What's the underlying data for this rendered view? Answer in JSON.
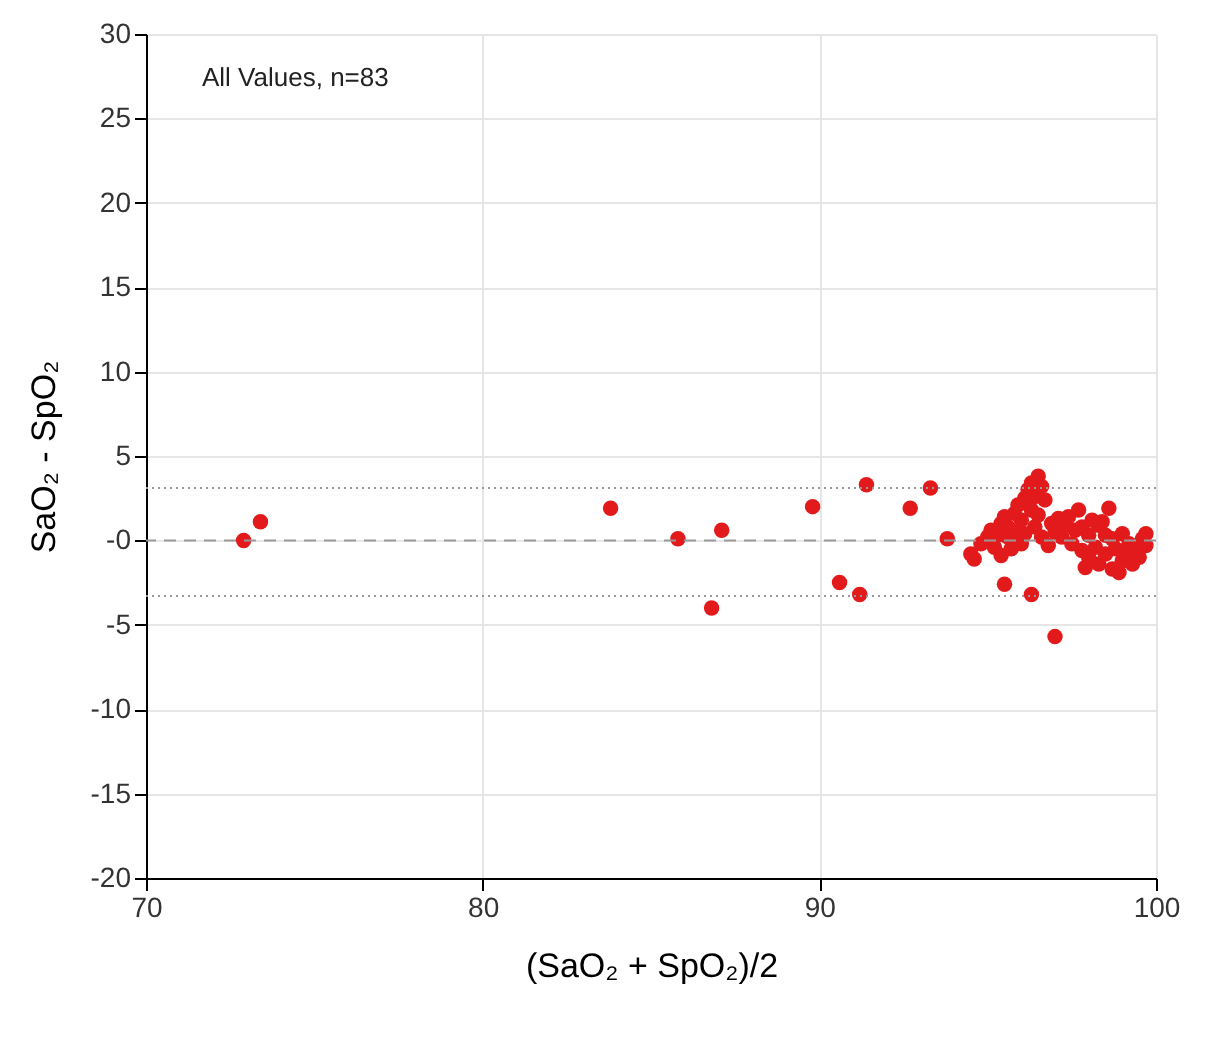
{
  "chart_data": {
    "type": "scatter",
    "xlabel": "(SaO₂ + SpO₂)/2",
    "ylabel": "SaO₂ - SpO₂",
    "annotations": [
      "All Values, n=83"
    ],
    "xlim": [
      70,
      100
    ],
    "xticks": [
      70,
      80,
      90,
      100
    ],
    "ylim": [
      -20,
      30
    ],
    "yticks": [
      -20,
      -15,
      -10,
      -5,
      {
        "value": 0,
        "label": "-0"
      },
      5,
      10,
      15,
      20,
      25,
      30
    ],
    "grid": true,
    "marker": "circle",
    "ref_lines": [
      {
        "axis": "y",
        "value": 3.1,
        "line_style": "dotted",
        "color": "#999999"
      },
      {
        "axis": "y",
        "value": 0,
        "line_style": "dashed",
        "color": "#999999"
      },
      {
        "axis": "y",
        "value": -3.3,
        "line_style": "dotted",
        "color": "#999999"
      }
    ],
    "series": [
      {
        "color": "#e31a1c",
        "x": [
          72.9,
          73.4,
          83.8,
          85.8,
          86.8,
          87.1,
          89.8,
          90.6,
          91.2,
          91.4,
          93.3,
          92.7,
          93.8,
          97.0,
          95.5,
          96.3,
          94.5,
          94.6,
          94.8,
          95.0,
          95.1,
          95.2,
          95.3,
          95.4,
          95.4,
          95.5,
          95.6,
          95.6,
          95.7,
          95.8,
          95.8,
          95.9,
          96.0,
          96.0,
          96.1,
          96.1,
          96.2,
          96.3,
          96.3,
          96.4,
          96.4,
          96.5,
          96.5,
          96.6,
          96.6,
          96.7,
          96.8,
          96.9,
          97.0,
          97.1,
          97.2,
          97.3,
          97.4,
          97.5,
          97.6,
          97.7,
          97.8,
          97.8,
          97.9,
          98.0,
          98.0,
          98.1,
          98.2,
          98.3,
          98.3,
          98.4,
          98.5,
          98.5,
          98.6,
          98.7,
          98.7,
          98.8,
          98.9,
          99.0,
          99.0,
          99.1,
          99.2,
          99.3,
          99.4,
          99.5,
          99.6,
          99.7,
          99.7
        ],
        "values": [
          0,
          1.1,
          1.9,
          0.1,
          -4.0,
          0.6,
          2.0,
          -2.5,
          -3.2,
          3.3,
          3.1,
          1.9,
          0.1,
          -5.7,
          -2.6,
          -3.2,
          -0.8,
          -1.1,
          -0.2,
          0.2,
          0.6,
          -0.4,
          0.3,
          1.0,
          -0.9,
          1.4,
          0.2,
          0.8,
          -0.5,
          1.6,
          0.5,
          2.1,
          -0.2,
          1.2,
          2.5,
          0.4,
          3.0,
          1.8,
          3.4,
          0.8,
          2.6,
          3.8,
          1.5,
          3.2,
          0.2,
          2.4,
          -0.3,
          1.0,
          0.5,
          1.3,
          0.2,
          0.9,
          1.4,
          -0.2,
          0.6,
          1.8,
          -0.6,
          0.8,
          -1.6,
          0.3,
          -1.0,
          1.2,
          -0.4,
          0.9,
          -1.4,
          1.1,
          0.3,
          -0.8,
          1.9,
          -1.7,
          0.1,
          -0.5,
          -1.9,
          0.4,
          -1.2,
          -0.8,
          -0.2,
          -1.4,
          -0.5,
          -1.0,
          0.1,
          -0.3,
          0.4
        ]
      }
    ]
  }
}
